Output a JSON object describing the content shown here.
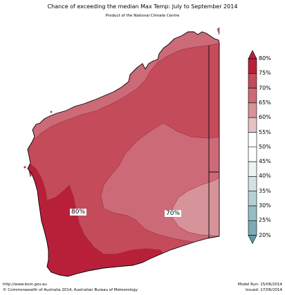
{
  "header": {
    "title": "Chance of exceeding the median Max Temp: July to September 2014",
    "subtitle": "Product of the National Climate Centre"
  },
  "map": {
    "region_labels": [
      {
        "id": "south-west",
        "text": "80%"
      },
      {
        "id": "central-south",
        "text": "70%"
      }
    ],
    "colors": {
      "c80": "#b8203a",
      "c75": "#c44b5a",
      "c70": "#cd6a77",
      "c65": "#d69399",
      "border": "#000000"
    }
  },
  "legend": {
    "labels": [
      "80%",
      "75%",
      "70%",
      "65%",
      "60%",
      "55%",
      "50%",
      "45%",
      "40%",
      "35%",
      "30%",
      "25%",
      "20%"
    ],
    "colors": [
      "#b8203a",
      "#c44b5a",
      "#cd6a77",
      "#d69399",
      "#e7c2c5",
      "#ffffff",
      "#ffffff",
      "#eef2f3",
      "#d4e1e4",
      "#b6cfd4",
      "#97bcc3",
      "#7bacb5",
      "#5e9aa6"
    ]
  },
  "footer": {
    "url": "http://www.bom.gov.au",
    "copyright": "©  Commonwealth of Australia 2014, Australian Bureau of Meteorology",
    "model_run": "Model Run: 15/06/2014",
    "issued": "Issued: 17/06/2014"
  }
}
